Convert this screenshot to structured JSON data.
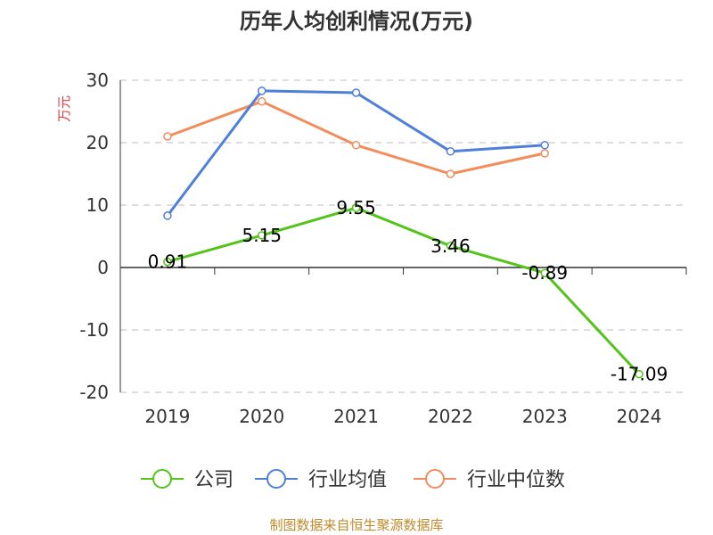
{
  "chart_data": {
    "type": "line",
    "title": "历年人均创利情况(万元)",
    "ylabel": "万元",
    "xlabel": "",
    "categories": [
      "2019",
      "2020",
      "2021",
      "2022",
      "2023",
      "2024"
    ],
    "ylim": [
      -20,
      30
    ],
    "yticks": [
      30,
      20,
      10,
      0,
      -10,
      -20
    ],
    "grid": true,
    "legend_position": "bottom",
    "series": [
      {
        "name": "公司",
        "color": "#52c41a",
        "values": [
          0.91,
          5.15,
          9.55,
          3.46,
          -0.89,
          -17.09
        ],
        "labels": [
          "0.91",
          "5.15",
          "9.55",
          "3.46",
          "-0.89",
          "-17.09"
        ]
      },
      {
        "name": "行业均值",
        "color": "#4e7fd9",
        "values": [
          8.3,
          28.3,
          28.0,
          18.6,
          19.6,
          null
        ]
      },
      {
        "name": "行业中位数",
        "color": "#f28c5a",
        "values": [
          21.0,
          26.6,
          19.6,
          15.0,
          18.3,
          null
        ]
      }
    ]
  },
  "source": "制图数据来自恒生聚源数据库"
}
